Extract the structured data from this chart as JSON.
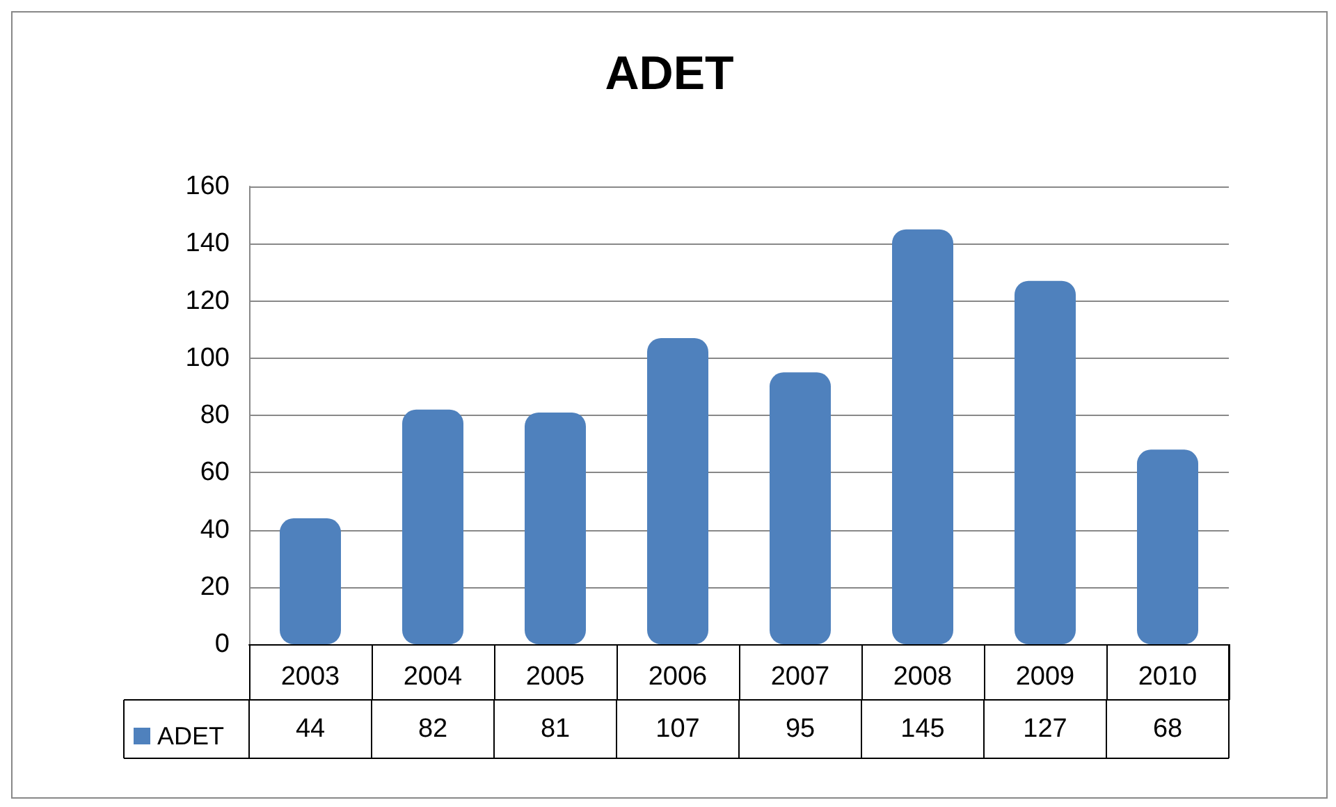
{
  "chart_data": {
    "type": "bar",
    "title": "ADET",
    "categories": [
      "2003",
      "2004",
      "2005",
      "2006",
      "2007",
      "2008",
      "2009",
      "2010"
    ],
    "series": [
      {
        "name": "ADET",
        "color": "#4f81bd",
        "values": [
          44,
          82,
          81,
          107,
          95,
          145,
          127,
          68
        ]
      }
    ],
    "ylim": [
      0,
      160
    ],
    "yticks": [
      0,
      20,
      40,
      60,
      80,
      100,
      120,
      140,
      160
    ],
    "grid": "y",
    "legend": "bottom left",
    "data_labels": true
  }
}
